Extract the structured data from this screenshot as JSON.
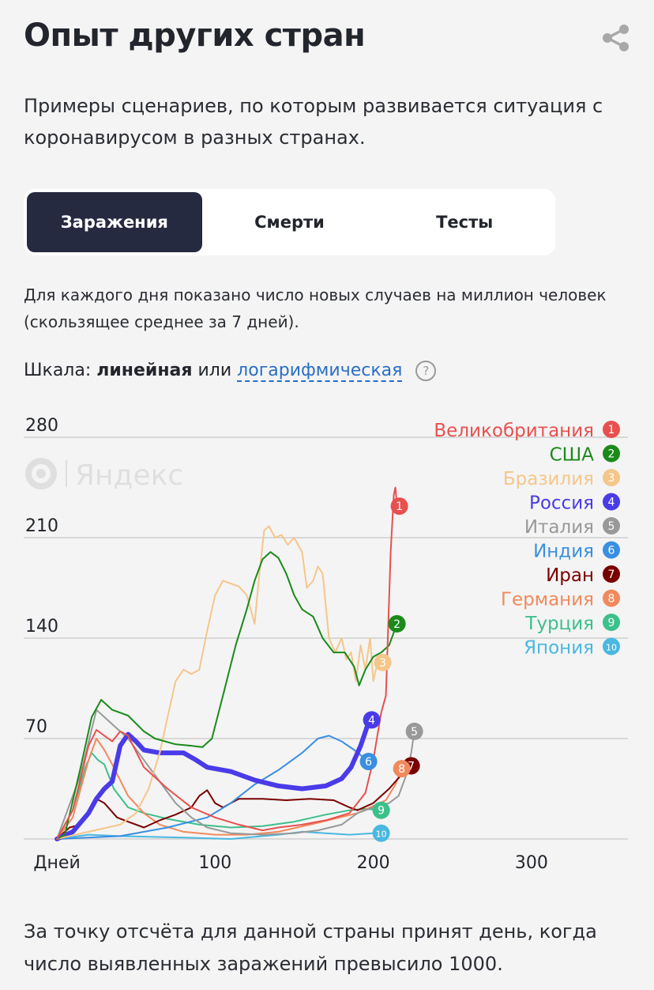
{
  "header": {
    "title": "Опыт других стран",
    "share_icon": "share-icon"
  },
  "subtitle": "Примеры сценариев, по которым развивается ситуация с коронавирусом в разных странах.",
  "tabs": [
    {
      "label": "Заражения",
      "active": true
    },
    {
      "label": "Смерти",
      "active": false
    },
    {
      "label": "Тесты",
      "active": false
    }
  ],
  "description": "Для каждого дня показано число новых случаев на миллион человек (скользящее среднее за 7 дней).",
  "scale": {
    "label": "Шкала:",
    "linear": "линейная",
    "or": "или",
    "log": "логарифмическая",
    "help": "?"
  },
  "watermark": "Яндекс",
  "footer": "За точку отсчёта для данной страны принят день, когда число выявленных заражений превысило 1000.",
  "chart_data": {
    "type": "line",
    "title": "",
    "xlabel": "Дней",
    "ylabel": "",
    "xlim": [
      -21,
      361
    ],
    "ylim": [
      0,
      280
    ],
    "xticks": [
      100,
      200,
      300
    ],
    "yticks": [
      70,
      140,
      210,
      280
    ],
    "grid": true,
    "legend_position": "top-right",
    "series": [
      {
        "id": 1,
        "name": "Великобритания",
        "color": "#e8504f",
        "width": 2,
        "points": [
          [
            0,
            0
          ],
          [
            10,
            20
          ],
          [
            20,
            65
          ],
          [
            25,
            76
          ],
          [
            30,
            72
          ],
          [
            35,
            68
          ],
          [
            40,
            75
          ],
          [
            45,
            72
          ],
          [
            55,
            50
          ],
          [
            70,
            35
          ],
          [
            85,
            22
          ],
          [
            100,
            15
          ],
          [
            115,
            10
          ],
          [
            130,
            6
          ],
          [
            140,
            8
          ],
          [
            155,
            10
          ],
          [
            170,
            13
          ],
          [
            185,
            18
          ],
          [
            195,
            32
          ],
          [
            200,
            55
          ],
          [
            205,
            88
          ],
          [
            208,
            100
          ],
          [
            211,
            200
          ],
          [
            213,
            240
          ],
          [
            214,
            245
          ],
          [
            215,
            232
          ]
        ]
      },
      {
        "id": 2,
        "name": "США",
        "color": "#1a8a1a",
        "width": 2,
        "points": [
          [
            0,
            0
          ],
          [
            5,
            3
          ],
          [
            15,
            50
          ],
          [
            22,
            85
          ],
          [
            28,
            97
          ],
          [
            35,
            90
          ],
          [
            40,
            88
          ],
          [
            45,
            86
          ],
          [
            55,
            75
          ],
          [
            62,
            70
          ],
          [
            75,
            66
          ],
          [
            85,
            65
          ],
          [
            92,
            64
          ],
          [
            98,
            70
          ],
          [
            105,
            100
          ],
          [
            113,
            135
          ],
          [
            120,
            160
          ],
          [
            125,
            180
          ],
          [
            130,
            195
          ],
          [
            135,
            200
          ],
          [
            140,
            196
          ],
          [
            145,
            185
          ],
          [
            150,
            170
          ],
          [
            155,
            160
          ],
          [
            162,
            155
          ],
          [
            168,
            140
          ],
          [
            175,
            130
          ],
          [
            182,
            130
          ],
          [
            188,
            120
          ],
          [
            191,
            107
          ],
          [
            195,
            118
          ],
          [
            200,
            127
          ],
          [
            205,
            130
          ],
          [
            210,
            135
          ],
          [
            215,
            150
          ]
        ]
      },
      {
        "id": 3,
        "name": "Бразилия",
        "color": "#f5c68a",
        "width": 2,
        "points": [
          [
            0,
            0
          ],
          [
            20,
            5
          ],
          [
            40,
            10
          ],
          [
            50,
            18
          ],
          [
            58,
            35
          ],
          [
            65,
            60
          ],
          [
            70,
            85
          ],
          [
            75,
            110
          ],
          [
            80,
            118
          ],
          [
            85,
            115
          ],
          [
            90,
            118
          ],
          [
            95,
            145
          ],
          [
            100,
            170
          ],
          [
            105,
            180
          ],
          [
            110,
            178
          ],
          [
            115,
            176
          ],
          [
            120,
            170
          ],
          [
            125,
            150
          ],
          [
            128,
            185
          ],
          [
            131,
            215
          ],
          [
            134,
            218
          ],
          [
            138,
            210
          ],
          [
            142,
            212
          ],
          [
            146,
            205
          ],
          [
            150,
            210
          ],
          [
            155,
            200
          ],
          [
            158,
            175
          ],
          [
            162,
            180
          ],
          [
            165,
            190
          ],
          [
            168,
            185
          ],
          [
            172,
            140
          ],
          [
            176,
            130
          ],
          [
            180,
            140
          ],
          [
            183,
            125
          ],
          [
            186,
            130
          ],
          [
            189,
            110
          ],
          [
            192,
            135
          ],
          [
            195,
            118
          ],
          [
            198,
            140
          ],
          [
            200,
            110
          ],
          [
            203,
            125
          ],
          [
            206,
            123
          ]
        ]
      },
      {
        "id": 4,
        "name": "Россия",
        "color": "#4a3be8",
        "width": 6,
        "points": [
          [
            0,
            0
          ],
          [
            10,
            5
          ],
          [
            20,
            18
          ],
          [
            25,
            28
          ],
          [
            30,
            35
          ],
          [
            35,
            40
          ],
          [
            40,
            65
          ],
          [
            45,
            73
          ],
          [
            50,
            68
          ],
          [
            55,
            62
          ],
          [
            65,
            60
          ],
          [
            80,
            60
          ],
          [
            88,
            55
          ],
          [
            95,
            50
          ],
          [
            110,
            47
          ],
          [
            125,
            41
          ],
          [
            140,
            37
          ],
          [
            155,
            35
          ],
          [
            170,
            37
          ],
          [
            180,
            42
          ],
          [
            186,
            50
          ],
          [
            192,
            65
          ],
          [
            196,
            78
          ],
          [
            199,
            83
          ]
        ]
      },
      {
        "id": 5,
        "name": "Италия",
        "color": "#999999",
        "width": 2,
        "points": [
          [
            0,
            0
          ],
          [
            15,
            45
          ],
          [
            25,
            90
          ],
          [
            35,
            80
          ],
          [
            45,
            70
          ],
          [
            55,
            55
          ],
          [
            65,
            40
          ],
          [
            75,
            25
          ],
          [
            85,
            15
          ],
          [
            95,
            8
          ],
          [
            110,
            4
          ],
          [
            130,
            3
          ],
          [
            150,
            4
          ],
          [
            165,
            6
          ],
          [
            180,
            10
          ],
          [
            190,
            18
          ],
          [
            200,
            22
          ],
          [
            210,
            25
          ],
          [
            216,
            30
          ],
          [
            221,
            45
          ],
          [
            224,
            60
          ],
          [
            226,
            75
          ]
        ]
      },
      {
        "id": 6,
        "name": "Индия",
        "color": "#3a8fe0",
        "width": 2,
        "points": [
          [
            0,
            0
          ],
          [
            40,
            2
          ],
          [
            70,
            8
          ],
          [
            95,
            15
          ],
          [
            110,
            25
          ],
          [
            125,
            38
          ],
          [
            140,
            48
          ],
          [
            155,
            60
          ],
          [
            165,
            70
          ],
          [
            172,
            72
          ],
          [
            180,
            68
          ],
          [
            188,
            62
          ],
          [
            197,
            54
          ]
        ]
      },
      {
        "id": 7,
        "name": "Иран",
        "color": "#7a0000",
        "width": 2,
        "points": [
          [
            0,
            0
          ],
          [
            8,
            8
          ],
          [
            15,
            10
          ],
          [
            20,
            18
          ],
          [
            25,
            28
          ],
          [
            30,
            25
          ],
          [
            38,
            15
          ],
          [
            45,
            12
          ],
          [
            55,
            8
          ],
          [
            65,
            13
          ],
          [
            75,
            17
          ],
          [
            85,
            22
          ],
          [
            90,
            30
          ],
          [
            95,
            34
          ],
          [
            100,
            25
          ],
          [
            105,
            22
          ],
          [
            115,
            28
          ],
          [
            130,
            28
          ],
          [
            145,
            27
          ],
          [
            160,
            28
          ],
          [
            175,
            27
          ],
          [
            185,
            22
          ],
          [
            190,
            20
          ],
          [
            200,
            25
          ],
          [
            210,
            35
          ],
          [
            218,
            45
          ],
          [
            224,
            51
          ]
        ]
      },
      {
        "id": 8,
        "name": "Германия",
        "color": "#f08a5d",
        "width": 2,
        "points": [
          [
            0,
            0
          ],
          [
            10,
            15
          ],
          [
            20,
            55
          ],
          [
            25,
            70
          ],
          [
            30,
            62
          ],
          [
            35,
            52
          ],
          [
            45,
            30
          ],
          [
            55,
            18
          ],
          [
            65,
            10
          ],
          [
            80,
            5
          ],
          [
            100,
            3
          ],
          [
            120,
            3
          ],
          [
            140,
            5
          ],
          [
            160,
            10
          ],
          [
            175,
            14
          ],
          [
            190,
            18
          ],
          [
            200,
            23
          ],
          [
            208,
            27
          ],
          [
            214,
            38
          ],
          [
            218,
            49
          ]
        ]
      },
      {
        "id": 9,
        "name": "Турция",
        "color": "#3cc08c",
        "width": 2,
        "points": [
          [
            0,
            0
          ],
          [
            10,
            20
          ],
          [
            18,
            50
          ],
          [
            22,
            60
          ],
          [
            26,
            55
          ],
          [
            30,
            52
          ],
          [
            36,
            35
          ],
          [
            45,
            22
          ],
          [
            55,
            18
          ],
          [
            70,
            14
          ],
          [
            90,
            10
          ],
          [
            110,
            8
          ],
          [
            130,
            9
          ],
          [
            150,
            12
          ],
          [
            170,
            17
          ],
          [
            185,
            20
          ],
          [
            195,
            21
          ],
          [
            205,
            20
          ]
        ]
      },
      {
        "id": 10,
        "name": "Япония",
        "color": "#4ab8e0",
        "width": 2,
        "points": [
          [
            0,
            0
          ],
          [
            20,
            3
          ],
          [
            40,
            2
          ],
          [
            80,
            1
          ],
          [
            110,
            0
          ],
          [
            140,
            3
          ],
          [
            155,
            5
          ],
          [
            170,
            4
          ],
          [
            185,
            3
          ],
          [
            200,
            4
          ],
          [
            205,
            4
          ]
        ]
      }
    ]
  }
}
